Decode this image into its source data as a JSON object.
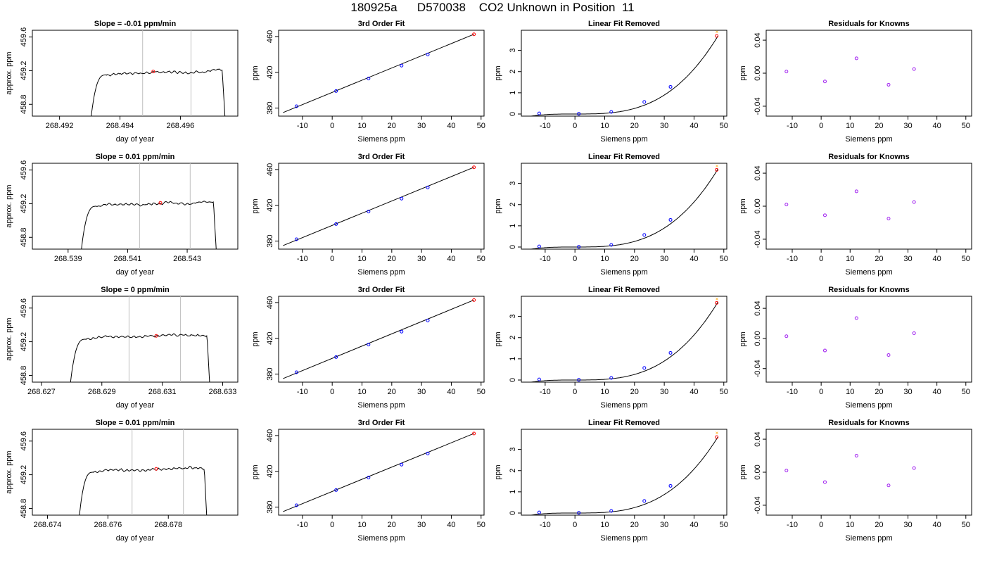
{
  "header": {
    "title": "180925a      D570038    CO2 Unknown in Position  11"
  },
  "colors": {
    "trace": "#000000",
    "marker_red": "#ff0000",
    "marker_blue": "#0000ff",
    "marker_purple": "#a020f0",
    "vline": "#bebebe",
    "orange": "#ffa500"
  },
  "chart_data": [
    {
      "row": 1,
      "col": 1,
      "type": "line",
      "title": "Slope =  -0.01  ppm/min",
      "xlabel": "day of year",
      "ylabel": "approx. ppm",
      "xlim": [
        268.4911,
        268.4979
      ],
      "ylim": [
        458.66,
        459.68
      ],
      "xticks": [
        "268.492",
        "268.494",
        "268.496"
      ],
      "yticks": [
        "458.8",
        "459.2",
        "459.6"
      ],
      "grid": false,
      "vlines": [
        268.49475,
        268.49635
      ],
      "marker": {
        "x": 268.4951,
        "y": 459.19,
        "color": "red"
      },
      "trace": {
        "t0": 268.493,
        "t1": 268.4975,
        "plateau": 459.18,
        "start": 458.5
      }
    },
    {
      "row": 1,
      "col": 2,
      "type": "line",
      "title": "3rd Order Fit",
      "xlabel": "Siemens ppm",
      "ylabel": "ppm",
      "xlim": [
        -18,
        51
      ],
      "ylim": [
        371,
        467
      ],
      "xticks": [
        "-10",
        "0",
        "10",
        "20",
        "30",
        "40",
        "50"
      ],
      "yticks": [
        "380",
        "420",
        "460"
      ],
      "points": [
        {
          "x": -12,
          "y": 382
        },
        {
          "x": 1.3,
          "y": 399
        },
        {
          "x": 12.2,
          "y": 413
        },
        {
          "x": 23.3,
          "y": 427.5
        },
        {
          "x": 32.1,
          "y": 440
        }
      ],
      "unknown": {
        "x": 47.6,
        "y": 462.5
      },
      "fit": [
        {
          "x": -16.5,
          "y": 375
        },
        {
          "x": 47.6,
          "y": 462.5
        }
      ]
    },
    {
      "row": 1,
      "col": 3,
      "type": "line",
      "title": "Linear Fit Removed",
      "xlabel": "Siemens ppm",
      "ylabel": "ppm",
      "xlim": [
        -18,
        51
      ],
      "ylim": [
        -0.1,
        3.95
      ],
      "xticks": [
        "-10",
        "0",
        "10",
        "20",
        "30",
        "40",
        "50"
      ],
      "yticks": [
        "0",
        "1",
        "2",
        "3"
      ],
      "points": [
        {
          "x": -12,
          "y": 0.03
        },
        {
          "x": 1.3,
          "y": 0.01
        },
        {
          "x": 12.2,
          "y": 0.1
        },
        {
          "x": 23.3,
          "y": 0.57
        },
        {
          "x": 32.1,
          "y": 1.28
        }
      ],
      "unknown": {
        "x": 47.6,
        "y": 3.68
      },
      "poly": [
        0.000428,
        -0.000207,
        3.43e-07,
        3.33e-05
      ]
    },
    {
      "row": 1,
      "col": 4,
      "type": "scatter",
      "title": "Residuals for Knowns",
      "xlabel": "Siemens ppm",
      "ylabel": "ppm",
      "xlim": [
        -19,
        52
      ],
      "ylim": [
        -0.052,
        0.052
      ],
      "xticks": [
        "-10",
        "0",
        "10",
        "20",
        "30",
        "40",
        "50"
      ],
      "yticks": [
        "-0.04",
        "0.00",
        "0.04"
      ],
      "points": [
        {
          "x": -12,
          "y": 0.002
        },
        {
          "x": 1.3,
          "y": -0.01
        },
        {
          "x": 12.2,
          "y": 0.018
        },
        {
          "x": 23.3,
          "y": -0.014
        },
        {
          "x": 32.1,
          "y": 0.005
        }
      ]
    },
    {
      "row": 2,
      "col": 1,
      "type": "line",
      "title": "Slope =  0.01  ppm/min",
      "xlabel": "day of year",
      "ylabel": "approx. ppm",
      "xlim": [
        268.5378,
        268.5447
      ],
      "ylim": [
        458.66,
        459.68
      ],
      "xticks": [
        "268.539",
        "268.541",
        "268.543"
      ],
      "yticks": [
        "458.8",
        "459.2",
        "459.6"
      ],
      "grid": false,
      "vlines": [
        268.5414,
        268.5431
      ],
      "marker": {
        "x": 268.5421,
        "y": 459.21,
        "color": "red"
      },
      "trace": {
        "t0": 268.5394,
        "t1": 268.544,
        "plateau": 459.2,
        "start": 458.5
      }
    },
    {
      "row": 2,
      "col": 2,
      "type": "line",
      "title": "3rd Order Fit",
      "xlabel": "Siemens ppm",
      "ylabel": "ppm",
      "xlim": [
        -18,
        51
      ],
      "ylim": [
        371,
        467
      ],
      "xticks": [
        "-10",
        "0",
        "10",
        "20",
        "30",
        "40",
        "50"
      ],
      "yticks": [
        "380",
        "420",
        "460"
      ],
      "points": [
        {
          "x": -12,
          "y": 382
        },
        {
          "x": 1.3,
          "y": 399
        },
        {
          "x": 12.2,
          "y": 413
        },
        {
          "x": 23.3,
          "y": 427.5
        },
        {
          "x": 32.1,
          "y": 440
        }
      ],
      "unknown": {
        "x": 47.6,
        "y": 462.5
      },
      "fit": [
        {
          "x": -16.5,
          "y": 375
        },
        {
          "x": 47.6,
          "y": 462.5
        }
      ]
    },
    {
      "row": 2,
      "col": 3,
      "type": "line",
      "title": "Linear Fit Removed",
      "xlabel": "Siemens ppm",
      "ylabel": "ppm",
      "xlim": [
        -18,
        51
      ],
      "ylim": [
        -0.1,
        3.95
      ],
      "xticks": [
        "-10",
        "0",
        "10",
        "20",
        "30",
        "40",
        "50"
      ],
      "yticks": [
        "0",
        "1",
        "2",
        "3"
      ],
      "points": [
        {
          "x": -12,
          "y": 0.03
        },
        {
          "x": 1.3,
          "y": 0.01
        },
        {
          "x": 12.2,
          "y": 0.1
        },
        {
          "x": 23.3,
          "y": 0.57
        },
        {
          "x": 32.1,
          "y": 1.28
        }
      ],
      "unknown": {
        "x": 47.6,
        "y": 3.64
      },
      "poly": [
        0.000428,
        -0.000207,
        3.43e-07,
        3.33e-05
      ]
    },
    {
      "row": 2,
      "col": 4,
      "type": "scatter",
      "title": "Residuals for Knowns",
      "xlabel": "Siemens ppm",
      "ylabel": "ppm",
      "xlim": [
        -19,
        52
      ],
      "ylim": [
        -0.052,
        0.052
      ],
      "xticks": [
        "-10",
        "0",
        "10",
        "20",
        "30",
        "40",
        "50"
      ],
      "yticks": [
        "-0.04",
        "0.00",
        "0.04"
      ],
      "points": [
        {
          "x": -12,
          "y": 0.002
        },
        {
          "x": 1.3,
          "y": -0.011
        },
        {
          "x": 12.2,
          "y": 0.018
        },
        {
          "x": 23.3,
          "y": -0.015
        },
        {
          "x": 32.1,
          "y": 0.005
        }
      ]
    },
    {
      "row": 3,
      "col": 1,
      "type": "line",
      "title": "Slope =  0  ppm/min",
      "xlabel": "day of year",
      "ylabel": "approx. ppm",
      "xlim": [
        268.6267,
        268.6335
      ],
      "ylim": [
        458.72,
        459.74
      ],
      "xticks": [
        "268.627",
        "268.629",
        "268.631",
        "268.633"
      ],
      "yticks": [
        "458.8",
        "459.2",
        "459.6"
      ],
      "grid": false,
      "vlines": [
        268.6299,
        268.6316
      ],
      "marker": {
        "x": 268.6308,
        "y": 459.27,
        "color": "red"
      },
      "trace": {
        "t0": 268.6279,
        "t1": 268.6326,
        "plateau": 459.26,
        "start": 458.5
      }
    },
    {
      "row": 3,
      "col": 2,
      "type": "line",
      "title": "3rd Order Fit",
      "xlabel": "Siemens ppm",
      "ylabel": "ppm",
      "xlim": [
        -18,
        51
      ],
      "ylim": [
        371,
        467
      ],
      "xticks": [
        "-10",
        "0",
        "10",
        "20",
        "30",
        "40",
        "50"
      ],
      "yticks": [
        "380",
        "420",
        "460"
      ],
      "points": [
        {
          "x": -12,
          "y": 382
        },
        {
          "x": 1.3,
          "y": 399
        },
        {
          "x": 12.2,
          "y": 413
        },
        {
          "x": 23.3,
          "y": 427.5
        },
        {
          "x": 32.1,
          "y": 440
        }
      ],
      "unknown": {
        "x": 47.6,
        "y": 462.8
      },
      "fit": [
        {
          "x": -16.5,
          "y": 375
        },
        {
          "x": 47.6,
          "y": 462.8
        }
      ]
    },
    {
      "row": 3,
      "col": 3,
      "type": "line",
      "title": "Linear Fit Removed",
      "xlabel": "Siemens ppm",
      "ylabel": "ppm",
      "xlim": [
        -18,
        51
      ],
      "ylim": [
        -0.1,
        3.95
      ],
      "xticks": [
        "-10",
        "0",
        "10",
        "20",
        "30",
        "40",
        "50"
      ],
      "yticks": [
        "0",
        "1",
        "2",
        "3"
      ],
      "points": [
        {
          "x": -12,
          "y": 0.03
        },
        {
          "x": 1.3,
          "y": 0.01
        },
        {
          "x": 12.2,
          "y": 0.1
        },
        {
          "x": 23.3,
          "y": 0.57
        },
        {
          "x": 32.1,
          "y": 1.28
        }
      ],
      "unknown": {
        "x": 47.6,
        "y": 3.64
      },
      "poly": [
        0.000428,
        -0.000207,
        3.43e-07,
        3.33e-05
      ]
    },
    {
      "row": 3,
      "col": 4,
      "type": "scatter",
      "title": "Residuals for Knowns",
      "xlabel": "Siemens ppm",
      "ylabel": "ppm",
      "xlim": [
        -19,
        52
      ],
      "ylim": [
        -0.058,
        0.056
      ],
      "xticks": [
        "-10",
        "0",
        "10",
        "20",
        "30",
        "40",
        "50"
      ],
      "yticks": [
        "-0.04",
        "0.00",
        "0.04"
      ],
      "points": [
        {
          "x": -12,
          "y": 0.003
        },
        {
          "x": 1.3,
          "y": -0.016
        },
        {
          "x": 12.2,
          "y": 0.027
        },
        {
          "x": 23.3,
          "y": -0.022
        },
        {
          "x": 32.1,
          "y": 0.007
        }
      ]
    },
    {
      "row": 4,
      "col": 1,
      "type": "line",
      "title": "Slope =  0.01  ppm/min",
      "xlabel": "day of year",
      "ylabel": "approx. ppm",
      "xlim": [
        268.6735,
        268.6803
      ],
      "ylim": [
        458.72,
        459.74
      ],
      "xticks": [
        "268.674",
        "268.676",
        "268.678"
      ],
      "yticks": [
        "458.8",
        "459.2",
        "459.6"
      ],
      "grid": false,
      "vlines": [
        268.6768,
        268.6785
      ],
      "marker": {
        "x": 268.6776,
        "y": 459.27,
        "color": "red"
      },
      "trace": {
        "t0": 268.675,
        "t1": 268.6793,
        "plateau": 459.26,
        "start": 458.5
      }
    },
    {
      "row": 4,
      "col": 2,
      "type": "line",
      "title": "3rd Order Fit",
      "xlabel": "Siemens ppm",
      "ylabel": "ppm",
      "xlim": [
        -18,
        51
      ],
      "ylim": [
        371,
        467
      ],
      "xticks": [
        "-10",
        "0",
        "10",
        "20",
        "30",
        "40",
        "50"
      ],
      "yticks": [
        "380",
        "420",
        "460"
      ],
      "points": [
        {
          "x": -12,
          "y": 382
        },
        {
          "x": 1.3,
          "y": 399
        },
        {
          "x": 12.2,
          "y": 413
        },
        {
          "x": 23.3,
          "y": 427.5
        },
        {
          "x": 32.1,
          "y": 440
        }
      ],
      "unknown": {
        "x": 47.6,
        "y": 462.3
      },
      "fit": [
        {
          "x": -16.5,
          "y": 375
        },
        {
          "x": 47.6,
          "y": 462.3
        }
      ]
    },
    {
      "row": 4,
      "col": 3,
      "type": "line",
      "title": "Linear Fit Removed",
      "xlabel": "Siemens ppm",
      "ylabel": "ppm",
      "xlim": [
        -18,
        51
      ],
      "ylim": [
        -0.1,
        3.95
      ],
      "xticks": [
        "-10",
        "0",
        "10",
        "20",
        "30",
        "40",
        "50"
      ],
      "yticks": [
        "0",
        "1",
        "2",
        "3"
      ],
      "points": [
        {
          "x": -12,
          "y": 0.03
        },
        {
          "x": 1.3,
          "y": 0.01
        },
        {
          "x": 12.2,
          "y": 0.1
        },
        {
          "x": 23.3,
          "y": 0.57
        },
        {
          "x": 32.1,
          "y": 1.28
        }
      ],
      "unknown": {
        "x": 47.6,
        "y": 3.58
      },
      "poly": [
        0.000428,
        -0.000207,
        3.43e-07,
        3.25e-05
      ]
    },
    {
      "row": 4,
      "col": 4,
      "type": "scatter",
      "title": "Residuals for Knowns",
      "xlabel": "Siemens ppm",
      "ylabel": "ppm",
      "xlim": [
        -19,
        52
      ],
      "ylim": [
        -0.052,
        0.052
      ],
      "xticks": [
        "-10",
        "0",
        "10",
        "20",
        "30",
        "40",
        "50"
      ],
      "yticks": [
        "-0.04",
        "0.00",
        "0.04"
      ],
      "points": [
        {
          "x": -12,
          "y": 0.002
        },
        {
          "x": 1.3,
          "y": -0.012
        },
        {
          "x": 12.2,
          "y": 0.02
        },
        {
          "x": 23.3,
          "y": -0.016
        },
        {
          "x": 32.1,
          "y": 0.005
        }
      ]
    }
  ]
}
